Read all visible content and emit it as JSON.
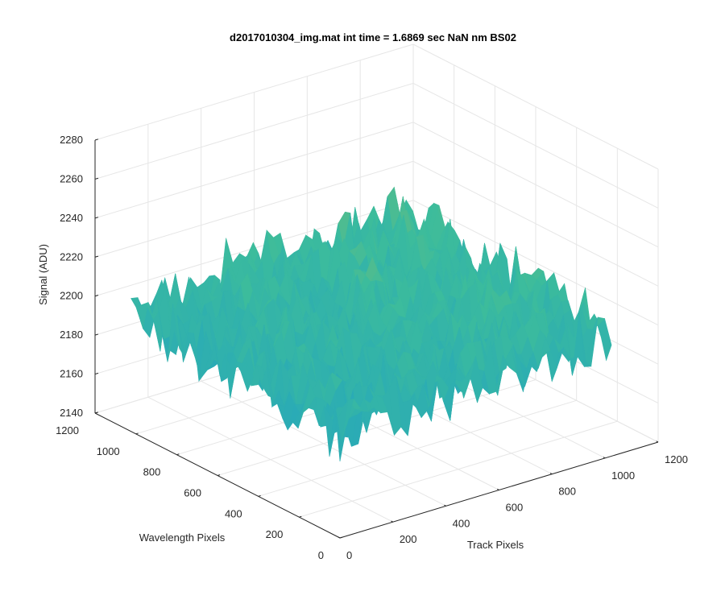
{
  "chart_data": {
    "type": "surface",
    "title": "d2017010304_img.mat int time = 1.6869 sec  NaN nm BS02",
    "xlabel": "Track Pixels",
    "ylabel": "Wavelength Pixels",
    "zlabel": "Signal (ADU)",
    "xlim": [
      0,
      1200
    ],
    "ylim": [
      0,
      1200
    ],
    "zlim": [
      2140,
      2280
    ],
    "x_ticks": [
      "0",
      "200",
      "400",
      "600",
      "800",
      "1000",
      "1200"
    ],
    "y_ticks": [
      "0",
      "200",
      "400",
      "600",
      "800",
      "1000",
      "1200"
    ],
    "z_ticks": [
      "2140",
      "2160",
      "2180",
      "2200",
      "2220",
      "2240",
      "2260",
      "2280"
    ],
    "grid": true,
    "data_extent": {
      "x": [
        0,
        1024
      ],
      "y": [
        0,
        1024
      ]
    },
    "approx_surface_level": {
      "mean": 2200,
      "min": 2150,
      "max": 2275
    },
    "colormap": "parula",
    "colors": {
      "low": "#0d8fe0",
      "mid": "#3cbc9c",
      "high": "#e8c030"
    }
  }
}
